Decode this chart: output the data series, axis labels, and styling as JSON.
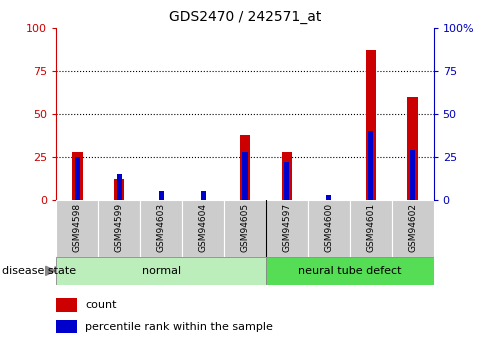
{
  "title": "GDS2470 / 242571_at",
  "samples": [
    "GSM94598",
    "GSM94599",
    "GSM94603",
    "GSM94604",
    "GSM94605",
    "GSM94597",
    "GSM94600",
    "GSM94601",
    "GSM94602"
  ],
  "count": [
    28,
    12,
    0,
    0,
    38,
    28,
    0,
    87,
    60
  ],
  "percentile": [
    25,
    15,
    5,
    5,
    28,
    22,
    3,
    40,
    29
  ],
  "groups": [
    {
      "label": "normal",
      "start": 0,
      "end": 5,
      "color": "#bbeebb"
    },
    {
      "label": "neural tube defect",
      "start": 5,
      "end": 9,
      "color": "#55dd55"
    }
  ],
  "bar_color_red": "#cc0000",
  "bar_color_blue": "#0000cc",
  "tick_color_red": "#cc0000",
  "tick_color_blue": "#0000bb",
  "yticks": [
    0,
    25,
    50,
    75,
    100
  ],
  "ylim": [
    0,
    100
  ],
  "grid_color": "#000000",
  "disease_state_label": "disease state",
  "legend_count": "count",
  "legend_percentile": "percentile rank within the sample",
  "sample_box_color": "#cccccc",
  "plot_bg_color": "#ffffff",
  "fig_bg_color": "#ffffff"
}
